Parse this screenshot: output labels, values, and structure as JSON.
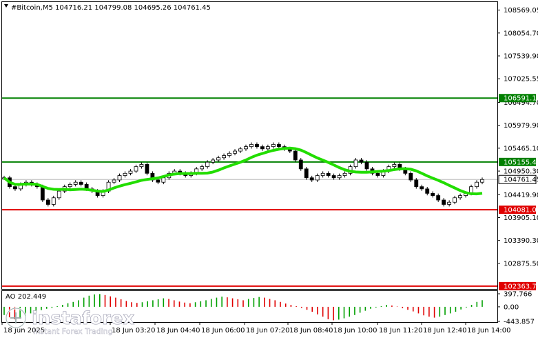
{
  "chart_data": [
    {
      "type": "candlestick",
      "symbol": "#Bitcoin",
      "timeframe": "M5",
      "header": "#Bitcoin,M5  104716.21 104799.08 104695.26 104761.45",
      "ohlc_last": {
        "open": 104716.21,
        "high": 104799.08,
        "low": 104695.26,
        "close": 104761.45
      },
      "y_ticks": [
        "108569.05",
        "108054.70",
        "107539.90",
        "107025.55",
        "106494.70",
        "105979.90",
        "105465.10",
        "104950.30",
        "104419.90",
        "103905.10",
        "103390.30",
        "102875.50"
      ],
      "ylim": [
        102300,
        108750
      ],
      "x_ticks": [
        "18 Jun 2025",
        "18 Jun 03:20",
        "18 Jun 04:40",
        "18 Jun 06:00",
        "18 Jun 07:20",
        "18 Jun 08:40",
        "18 Jun 10:00",
        "18 Jun 11:20",
        "18 Jun 12:40",
        "18 Jun 14:00"
      ],
      "levels": [
        {
          "value": 106591.11,
          "label": "106591.11",
          "color": "#008000"
        },
        {
          "value": 105155.4,
          "label": "105155.40",
          "color": "#008000"
        },
        {
          "value": 104081.03,
          "label": "104081.03",
          "color": "#e00000"
        },
        {
          "value": 102363.75,
          "label": "102363.75",
          "color": "#e00000"
        }
      ],
      "current_price": {
        "value": 104761.45,
        "label": "104761.45"
      },
      "moving_average_color": "#22dd00",
      "close_series": [
        104800,
        104600,
        104550,
        104650,
        104700,
        104650,
        104600,
        104300,
        104200,
        104350,
        104500,
        104600,
        104650,
        104700,
        104650,
        104550,
        104500,
        104400,
        104500,
        104700,
        104750,
        104850,
        104900,
        104950,
        105050,
        105100,
        104900,
        104750,
        104700,
        104800,
        104900,
        104950,
        104900,
        104850,
        104900,
        105000,
        105050,
        105150,
        105200,
        105250,
        105300,
        105350,
        105400,
        105450,
        105500,
        105550,
        105500,
        105450,
        105500,
        105550,
        105500,
        105450,
        105400,
        105200,
        105000,
        104800,
        104750,
        104850,
        104900,
        104850,
        104800,
        104850,
        104900,
        105050,
        105200,
        105150,
        105000,
        104900,
        104850,
        104950,
        105050,
        105100,
        105000,
        104900,
        104750,
        104600,
        104550,
        104450,
        104400,
        104300,
        104200,
        104250,
        104350,
        104400,
        104450,
        104600,
        104700,
        104761.45
      ]
    },
    {
      "type": "bar",
      "indicator": "AO",
      "title": "AO 202.449",
      "y_ticks": [
        "397.766",
        "0.00",
        "-443.857"
      ],
      "ylim": [
        -443.857,
        397.766
      ],
      "rising_color": "#00a000",
      "falling_color": "#e00000",
      "values": [
        -250,
        -320,
        -380,
        -350,
        -280,
        -200,
        -150,
        -100,
        -60,
        -30,
        20,
        60,
        110,
        150,
        200,
        280,
        340,
        380,
        390,
        360,
        320,
        280,
        230,
        180,
        140,
        120,
        140,
        170,
        200,
        230,
        260,
        240,
        200,
        160,
        130,
        110,
        140,
        170,
        200,
        240,
        280,
        310,
        290,
        260,
        230,
        200,
        240,
        270,
        300,
        280,
        240,
        200,
        150,
        100,
        60,
        20,
        -30,
        -90,
        -150,
        -230,
        -300,
        -380,
        -410,
        -390,
        -350,
        -300,
        -250,
        -180,
        -120,
        -60,
        -20,
        20,
        60,
        40,
        10,
        -40,
        -90,
        -140,
        -200,
        -260,
        -300,
        -330,
        -300,
        -250,
        -200,
        -150,
        -80,
        -20,
        60,
        150,
        202.449
      ]
    }
  ],
  "watermark": {
    "brand": "instaforex",
    "tagline": "Instant Forex Trading"
  }
}
